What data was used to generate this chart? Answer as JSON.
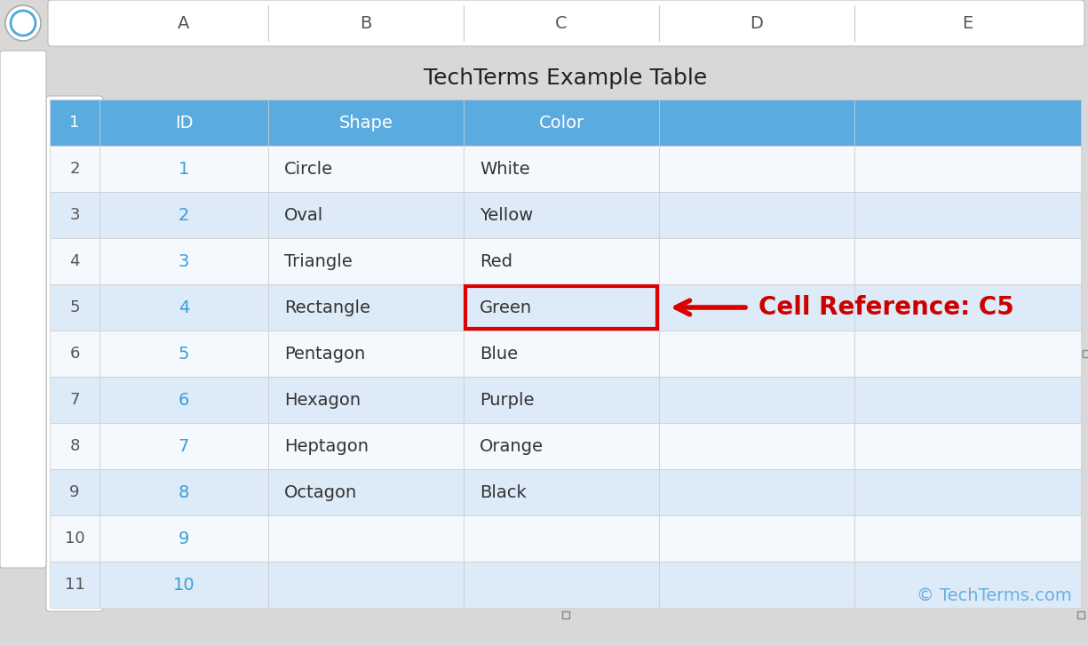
{
  "title": "TechTerms Example Table",
  "col_headers": [
    "A",
    "B",
    "C",
    "D",
    "E"
  ],
  "row_numbers": [
    "1",
    "2",
    "3",
    "4",
    "5",
    "6",
    "7",
    "8",
    "9",
    "10",
    "11"
  ],
  "header_row": [
    "ID",
    "Shape",
    "Color",
    "",
    ""
  ],
  "data_rows": [
    [
      "1",
      "Circle",
      "White",
      "",
      ""
    ],
    [
      "2",
      "Oval",
      "Yellow",
      "",
      ""
    ],
    [
      "3",
      "Triangle",
      "Red",
      "",
      ""
    ],
    [
      "4",
      "Rectangle",
      "Green",
      "",
      ""
    ],
    [
      "5",
      "Pentagon",
      "Blue",
      "",
      ""
    ],
    [
      "6",
      "Hexagon",
      "Purple",
      "",
      ""
    ],
    [
      "7",
      "Heptagon",
      "Orange",
      "",
      ""
    ],
    [
      "8",
      "Octagon",
      "Black",
      "",
      ""
    ],
    [
      "9",
      "",
      "",
      "",
      ""
    ],
    [
      "10",
      "",
      "",
      "",
      ""
    ]
  ],
  "header_bg": "#5aabe0",
  "header_text_color": "#ffffff",
  "row_bg_even": "#ddeaf7",
  "row_bg_odd": "#f5f9fd",
  "col_header_bg": "#f0f0f0",
  "col_header_text": "#555555",
  "id_color": "#3a9fd8",
  "grid_color": "#cccccc",
  "excel_bg": "#d8d8d8",
  "sheet_bg": "#ffffff",
  "row_num_bg_odd": "#f5f9fd",
  "row_num_bg_even": "#ddeaf7",
  "row_num_text": "#555555",
  "highlight_row_idx": 3,
  "highlight_col_idx": 2,
  "highlight_color": "#dd0000",
  "annotation_text": "Cell Reference: C5",
  "annotation_color": "#cc0000",
  "watermark": "© TechTerms.com",
  "watermark_color": "#5aabe0",
  "arrow_lw": 4
}
